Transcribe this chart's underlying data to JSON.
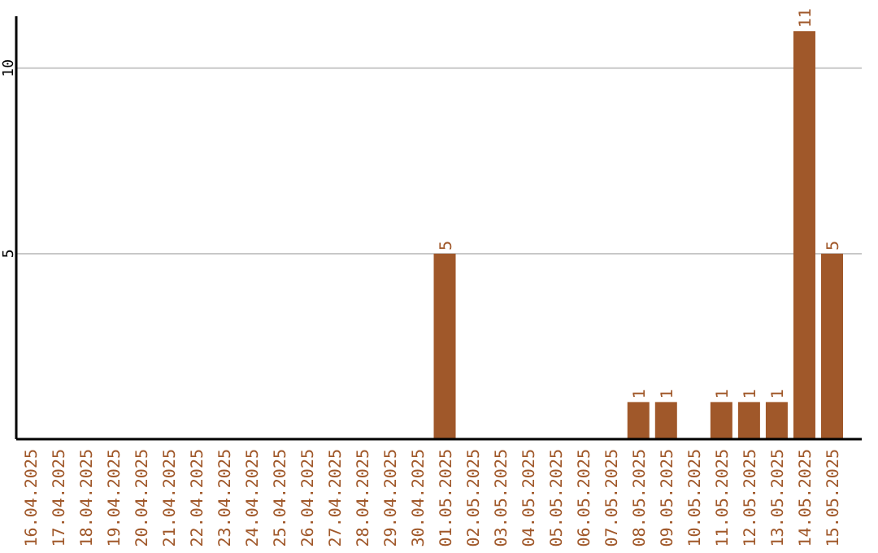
{
  "chart_data": {
    "type": "bar",
    "categories": [
      "16.04.2025",
      "17.04.2025",
      "18.04.2025",
      "19.04.2025",
      "20.04.2025",
      "21.04.2025",
      "22.04.2025",
      "23.04.2025",
      "24.04.2025",
      "25.04.2025",
      "26.04.2025",
      "27.04.2025",
      "28.04.2025",
      "29.04.2025",
      "30.04.2025",
      "01.05.2025",
      "02.05.2025",
      "03.05.2025",
      "04.05.2025",
      "05.05.2025",
      "06.05.2025",
      "07.05.2025",
      "08.05.2025",
      "09.05.2025",
      "10.05.2025",
      "11.05.2025",
      "12.05.2025",
      "13.05.2025",
      "14.05.2025",
      "15.05.2025"
    ],
    "values": [
      0,
      0,
      0,
      0,
      0,
      0,
      0,
      0,
      0,
      0,
      0,
      0,
      0,
      0,
      0,
      5,
      0,
      0,
      0,
      0,
      0,
      0,
      1,
      1,
      0,
      1,
      1,
      1,
      11,
      5
    ],
    "value_labels": [
      null,
      null,
      null,
      null,
      null,
      null,
      null,
      null,
      null,
      null,
      null,
      null,
      null,
      null,
      null,
      "5",
      null,
      null,
      null,
      null,
      null,
      null,
      "1",
      "1",
      null,
      "1",
      "1",
      "1",
      "11",
      "5"
    ],
    "color": "#a0582a",
    "ylim": [
      0,
      11.4
    ],
    "yticks": [
      5,
      10
    ],
    "grid": "y"
  }
}
